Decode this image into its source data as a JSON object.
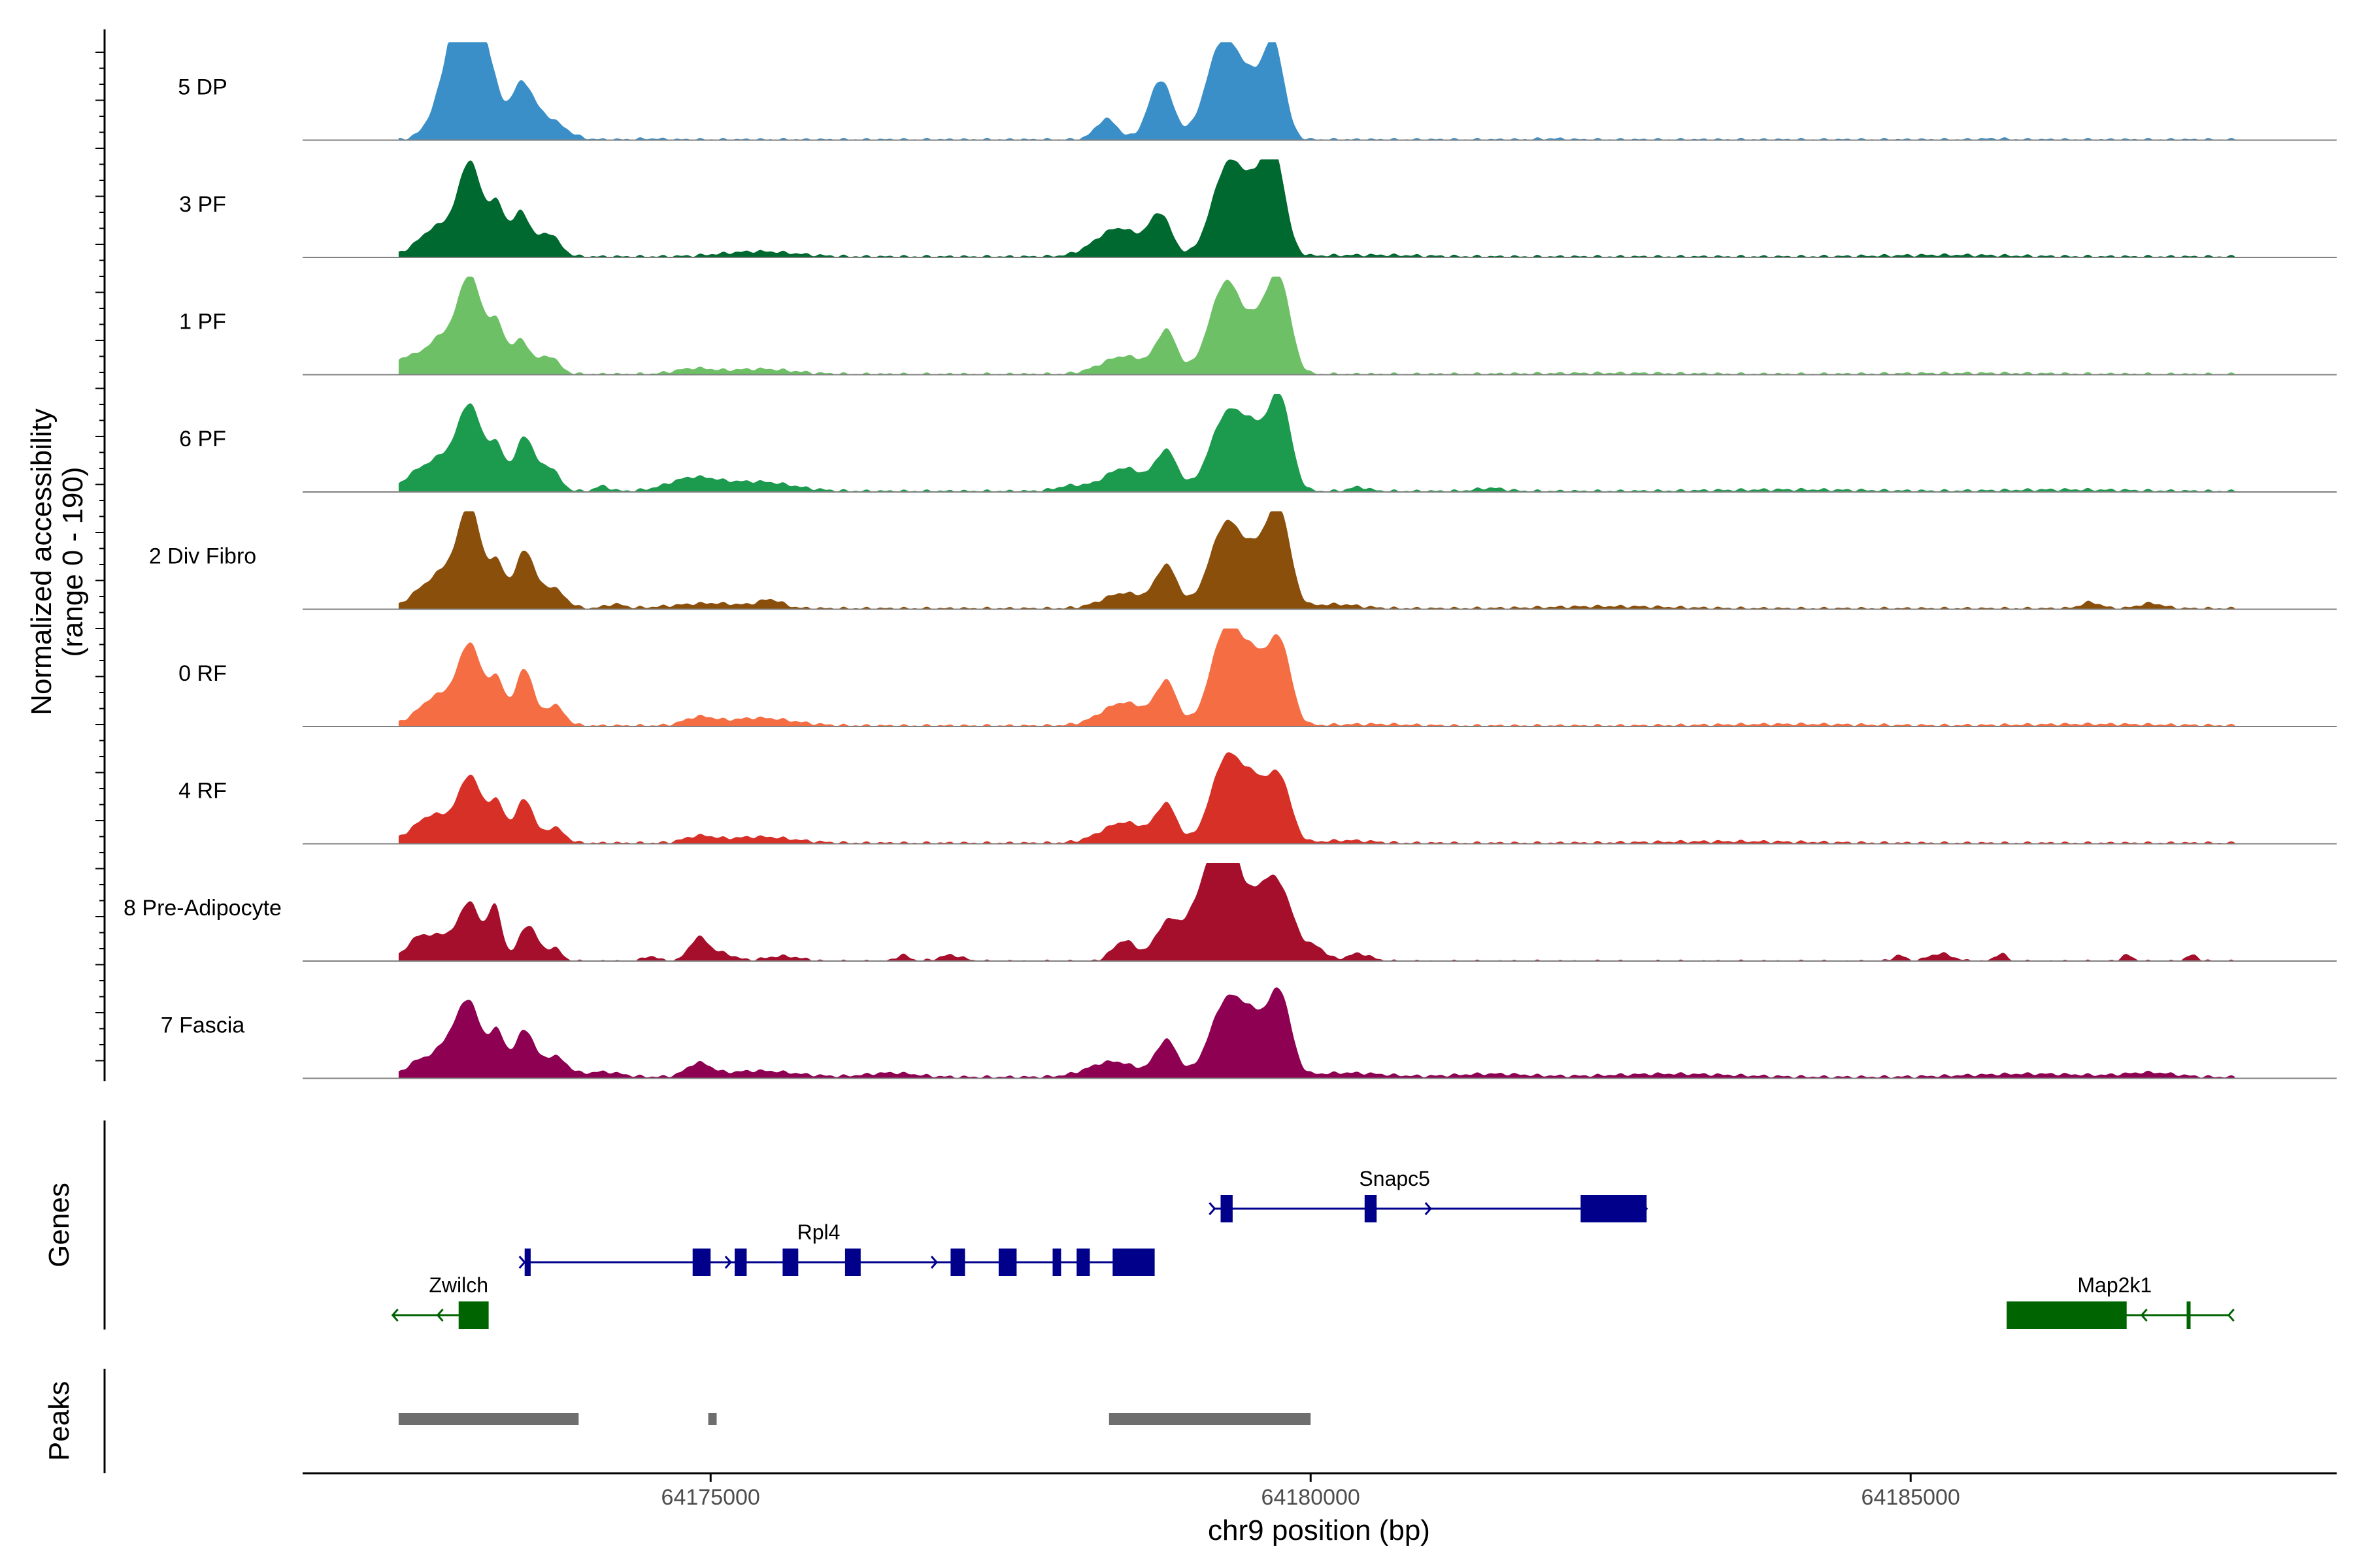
{
  "chart_data": {
    "type": "area",
    "title": "",
    "chromosome": "chr9",
    "xlabel": "chr9 position (bp)",
    "ylabel_line1": "Normalized accessibility",
    "ylabel_line2": "(range 0 - 190)",
    "ylim": [
      0,
      190
    ],
    "xlim": [
      64171600,
      64188550
    ],
    "xticks": [
      64175000,
      64180000,
      64185000
    ],
    "xtick_labels": [
      "64175000",
      "64180000",
      "64185000"
    ],
    "genes_label": "Genes",
    "peaks_label": "Peaks",
    "profile_range": [
      64172400,
      64187700
    ],
    "tracks": [
      {
        "name": "5 DP",
        "color": "#3A8FC8",
        "baseline": 1.5,
        "peaks": [
          [
            64172900,
            150,
            180
          ],
          [
            64173000,
            105,
            190
          ],
          [
            64173180,
            75,
            70
          ],
          [
            64173420,
            95,
            100
          ],
          [
            64173640,
            140,
            40
          ],
          [
            64178300,
            90,
            40
          ],
          [
            64178750,
            100,
            115
          ],
          [
            64179250,
            130,
            170
          ],
          [
            64179500,
            140,
            105
          ],
          [
            64179700,
            85,
            155
          ],
          [
            64174500,
            80,
            2
          ],
          [
            64182000,
            100,
            2
          ],
          [
            64185700,
            90,
            2
          ]
        ]
      },
      {
        "name": "3 PF",
        "color": "#00692F",
        "baseline": 2,
        "peaks": [
          [
            64172750,
            170,
            60
          ],
          [
            64173000,
            95,
            165
          ],
          [
            64173220,
            70,
            95
          ],
          [
            64173420,
            75,
            85
          ],
          [
            64173650,
            90,
            45
          ],
          [
            64175400,
            300,
            10
          ],
          [
            64178400,
            190,
            55
          ],
          [
            64178750,
            90,
            75
          ],
          [
            64179300,
            130,
            165
          ],
          [
            64179550,
            130,
            110
          ],
          [
            64179700,
            90,
            160
          ],
          [
            64180500,
            400,
            3
          ],
          [
            64185300,
            500,
            3
          ]
        ]
      },
      {
        "name": "1 PF",
        "color": "#6DC066",
        "baseline": 1.5,
        "peaks": [
          [
            64172450,
            80,
            25
          ],
          [
            64172750,
            150,
            70
          ],
          [
            64173000,
            100,
            175
          ],
          [
            64173220,
            70,
            90
          ],
          [
            64173420,
            75,
            65
          ],
          [
            64173650,
            85,
            35
          ],
          [
            64174850,
            150,
            10
          ],
          [
            64175400,
            280,
            10
          ],
          [
            64178450,
            190,
            35
          ],
          [
            64178800,
            85,
            80
          ],
          [
            64179300,
            140,
            180
          ],
          [
            64179600,
            100,
            90
          ],
          [
            64179750,
            90,
            160
          ],
          [
            64182500,
            600,
            2
          ],
          [
            64185500,
            600,
            2
          ]
        ]
      },
      {
        "name": "6 PF",
        "color": "#1C9A4E",
        "baseline": 2,
        "peaks": [
          [
            64172500,
            80,
            15
          ],
          [
            64172750,
            160,
            65
          ],
          [
            64173000,
            100,
            150
          ],
          [
            64173220,
            70,
            80
          ],
          [
            64173450,
            80,
            105
          ],
          [
            64173660,
            80,
            45
          ],
          [
            64174100,
            60,
            10
          ],
          [
            64174850,
            200,
            25
          ],
          [
            64175400,
            280,
            18
          ],
          [
            64178000,
            120,
            10
          ],
          [
            64178450,
            170,
            45
          ],
          [
            64178800,
            90,
            75
          ],
          [
            64179300,
            140,
            145
          ],
          [
            64179550,
            120,
            95
          ],
          [
            64179750,
            90,
            165
          ],
          [
            64180400,
            80,
            8
          ],
          [
            64181500,
            120,
            6
          ],
          [
            64184000,
            600,
            3
          ],
          [
            64186300,
            500,
            3
          ]
        ]
      },
      {
        "name": "2 Div Fibro",
        "color": "#8B4F0C",
        "baseline": 2,
        "peaks": [
          [
            64172550,
            100,
            20
          ],
          [
            64172800,
            140,
            75
          ],
          [
            64173000,
            90,
            175
          ],
          [
            64173220,
            70,
            85
          ],
          [
            64173450,
            80,
            110
          ],
          [
            64173680,
            100,
            40
          ],
          [
            64174200,
            80,
            8
          ],
          [
            64175000,
            300,
            10
          ],
          [
            64175500,
            100,
            15
          ],
          [
            64178450,
            180,
            30
          ],
          [
            64178800,
            90,
            80
          ],
          [
            64179300,
            140,
            165
          ],
          [
            64179600,
            120,
            100
          ],
          [
            64179750,
            90,
            150
          ],
          [
            64180200,
            200,
            8
          ],
          [
            64182500,
            500,
            4
          ],
          [
            64186500,
            80,
            12
          ],
          [
            64187000,
            100,
            10
          ]
        ]
      },
      {
        "name": "0 RF",
        "color": "#F46D43",
        "baseline": 2,
        "peaks": [
          [
            64172750,
            170,
            60
          ],
          [
            64173000,
            95,
            140
          ],
          [
            64173220,
            70,
            85
          ],
          [
            64173450,
            75,
            110
          ],
          [
            64173700,
            80,
            40
          ],
          [
            64174900,
            120,
            15
          ],
          [
            64175400,
            280,
            15
          ],
          [
            64178450,
            190,
            45
          ],
          [
            64178800,
            85,
            80
          ],
          [
            64179300,
            130,
            190
          ],
          [
            64179550,
            110,
            110
          ],
          [
            64179750,
            90,
            150
          ],
          [
            64180500,
            300,
            3
          ],
          [
            64184000,
            600,
            3
          ],
          [
            64186500,
            600,
            3
          ]
        ]
      },
      {
        "name": "4 RF",
        "color": "#D73027",
        "baseline": 2,
        "peaks": [
          [
            64172700,
            170,
            55
          ],
          [
            64173000,
            95,
            120
          ],
          [
            64173220,
            70,
            75
          ],
          [
            64173450,
            75,
            85
          ],
          [
            64173700,
            80,
            30
          ],
          [
            64174900,
            120,
            12
          ],
          [
            64175400,
            280,
            12
          ],
          [
            64178450,
            190,
            40
          ],
          [
            64178800,
            85,
            70
          ],
          [
            64179300,
            130,
            165
          ],
          [
            64179550,
            110,
            100
          ],
          [
            64179750,
            90,
            115
          ],
          [
            64180300,
            200,
            5
          ],
          [
            64183500,
            600,
            3
          ]
        ]
      },
      {
        "name": "8 Pre-Adipocyte",
        "color": "#A50F2B",
        "baseline": 0,
        "peaks": [
          [
            64172550,
            100,
            35
          ],
          [
            64172800,
            150,
            50
          ],
          [
            64173000,
            80,
            95
          ],
          [
            64173200,
            60,
            105
          ],
          [
            64173480,
            80,
            70
          ],
          [
            64173700,
            60,
            25
          ],
          [
            64174500,
            60,
            10
          ],
          [
            64174900,
            80,
            45
          ],
          [
            64175100,
            100,
            15
          ],
          [
            64175600,
            150,
            10
          ],
          [
            64176600,
            60,
            12
          ],
          [
            64177000,
            100,
            12
          ],
          [
            64178450,
            100,
            40
          ],
          [
            64178800,
            100,
            70
          ],
          [
            64179150,
            150,
            150
          ],
          [
            64179300,
            100,
            175
          ],
          [
            64179550,
            130,
            105
          ],
          [
            64179750,
            120,
            120
          ],
          [
            64180050,
            80,
            25
          ],
          [
            64180400,
            100,
            15
          ],
          [
            64184900,
            50,
            12
          ],
          [
            64185250,
            100,
            15
          ],
          [
            64185750,
            50,
            15
          ],
          [
            64186800,
            50,
            12
          ],
          [
            64187350,
            50,
            12
          ]
        ]
      },
      {
        "name": "7 Fascia",
        "color": "#8E0152",
        "baseline": 3,
        "peaks": [
          [
            64172550,
            100,
            25
          ],
          [
            64172850,
            140,
            75
          ],
          [
            64173000,
            90,
            105
          ],
          [
            64173220,
            70,
            85
          ],
          [
            64173450,
            80,
            90
          ],
          [
            64173700,
            100,
            40
          ],
          [
            64174100,
            150,
            10
          ],
          [
            64174900,
            100,
            25
          ],
          [
            64175400,
            300,
            12
          ],
          [
            64176500,
            200,
            8
          ],
          [
            64178350,
            200,
            30
          ],
          [
            64178800,
            90,
            70
          ],
          [
            64179300,
            140,
            145
          ],
          [
            64179550,
            120,
            90
          ],
          [
            64179750,
            90,
            145
          ],
          [
            64180300,
            300,
            8
          ],
          [
            64181500,
            300,
            6
          ],
          [
            64183000,
            500,
            6
          ],
          [
            64186000,
            500,
            6
          ],
          [
            64187000,
            200,
            8
          ]
        ]
      }
    ],
    "genes": [
      {
        "name": "Zwilch",
        "strand": "-",
        "row": 3,
        "color": "#006400",
        "start": 64172350,
        "end": 64173100,
        "exons": [
          [
            64172900,
            64173150
          ]
        ],
        "label_pos": 64172900
      },
      {
        "name": "Rpl4",
        "strand": "+",
        "row": 2,
        "color": "#00008B",
        "start": 64173450,
        "end": 64178600,
        "exons": [
          [
            64173450,
            64173500
          ],
          [
            64174850,
            64175000
          ],
          [
            64175200,
            64175300
          ],
          [
            64175600,
            64175730
          ],
          [
            64176120,
            64176250
          ],
          [
            64177000,
            64177120
          ],
          [
            64177400,
            64177550
          ],
          [
            64177850,
            64177920
          ],
          [
            64178050,
            64178160
          ],
          [
            64178350,
            64178700
          ]
        ],
        "label_pos": 64175900
      },
      {
        "name": "Snapc5",
        "strand": "+",
        "row": 1,
        "color": "#00008B",
        "start": 64179200,
        "end": 64182800,
        "exons": [
          [
            64179250,
            64179350
          ],
          [
            64180450,
            64180550
          ],
          [
            64182250,
            64182800
          ]
        ],
        "label_pos": 64180700
      },
      {
        "name": "Map2k1",
        "strand": "-",
        "row": 3,
        "color": "#006400",
        "start": 64186200,
        "end": 64187650,
        "exons": [
          [
            64185800,
            64186800
          ],
          [
            64187300,
            64187330
          ]
        ],
        "label_pos": 64186700
      }
    ],
    "peaks_track": [
      [
        64172400,
        64173900
      ],
      [
        64174980,
        64175050
      ],
      [
        64178320,
        64180000
      ]
    ]
  }
}
